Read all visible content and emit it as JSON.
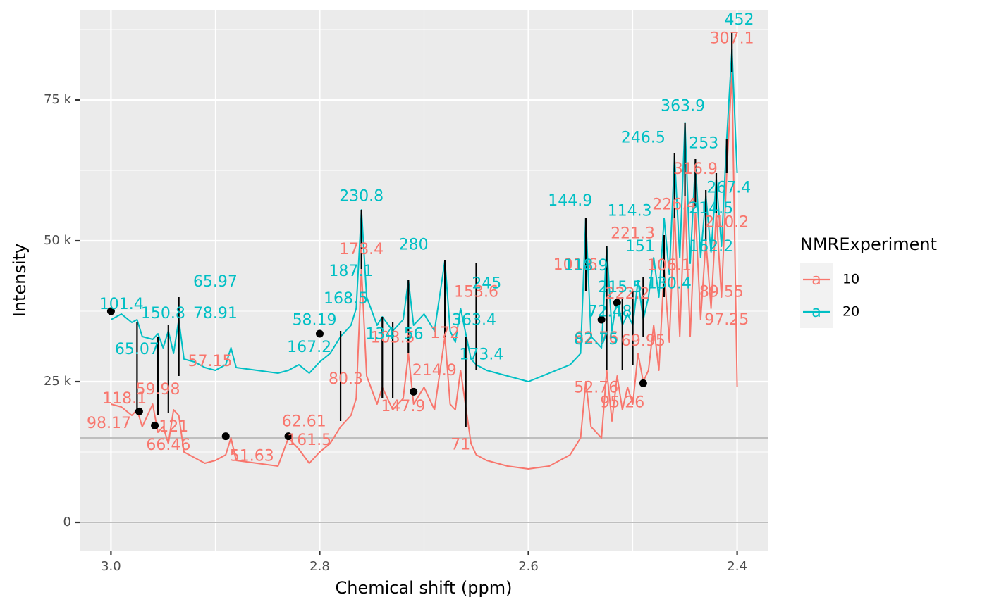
{
  "chart_data": {
    "type": "line",
    "title": "",
    "xlabel": "Chemical shift (ppm)",
    "ylabel": "Intensity",
    "xlim": [
      3.03,
      2.37
    ],
    "x_reversed": true,
    "ylim": [
      -5000,
      91000
    ],
    "x_ticks": [
      3.0,
      2.8,
      2.6,
      2.4
    ],
    "x_tick_labels": [
      "3.0",
      "2.8",
      "2.6",
      "2.4"
    ],
    "y_ticks": [
      0,
      25000,
      50000,
      75000
    ],
    "y_tick_labels": [
      "0",
      "25 k",
      "50 k",
      "75 k"
    ],
    "grid": true,
    "legend_position": "right",
    "legend_title": "NMRExperiment",
    "hlines": [
      0,
      15000
    ],
    "series": [
      {
        "name": "10",
        "color": "#F8766D",
        "points": [
          [
            3.0,
            21000
          ],
          [
            2.99,
            20500
          ],
          [
            2.98,
            19000
          ],
          [
            2.975,
            20000
          ],
          [
            2.97,
            17000
          ],
          [
            2.96,
            21000
          ],
          [
            2.955,
            16000
          ],
          [
            2.95,
            17000
          ],
          [
            2.945,
            14000
          ],
          [
            2.94,
            20000
          ],
          [
            2.935,
            19000
          ],
          [
            2.93,
            12500
          ],
          [
            2.92,
            11500
          ],
          [
            2.91,
            10500
          ],
          [
            2.9,
            11000
          ],
          [
            2.89,
            12000
          ],
          [
            2.885,
            15000
          ],
          [
            2.88,
            11000
          ],
          [
            2.86,
            10500
          ],
          [
            2.84,
            10000
          ],
          [
            2.83,
            15000
          ],
          [
            2.82,
            13000
          ],
          [
            2.81,
            10500
          ],
          [
            2.8,
            12500
          ],
          [
            2.79,
            14000
          ],
          [
            2.78,
            17000
          ],
          [
            2.77,
            19000
          ],
          [
            2.765,
            22000
          ],
          [
            2.76,
            45000
          ],
          [
            2.755,
            26000
          ],
          [
            2.745,
            21000
          ],
          [
            2.74,
            24000
          ],
          [
            2.73,
            20000
          ],
          [
            2.72,
            22000
          ],
          [
            2.715,
            30000
          ],
          [
            2.71,
            21000
          ],
          [
            2.7,
            24000
          ],
          [
            2.69,
            20000
          ],
          [
            2.68,
            33000
          ],
          [
            2.675,
            21000
          ],
          [
            2.67,
            20000
          ],
          [
            2.665,
            27000
          ],
          [
            2.655,
            14000
          ],
          [
            2.65,
            12000
          ],
          [
            2.64,
            11000
          ],
          [
            2.62,
            10000
          ],
          [
            2.6,
            9500
          ],
          [
            2.58,
            10000
          ],
          [
            2.56,
            12000
          ],
          [
            2.55,
            15000
          ],
          [
            2.545,
            25000
          ],
          [
            2.54,
            17000
          ],
          [
            2.53,
            15000
          ],
          [
            2.525,
            27000
          ],
          [
            2.52,
            18000
          ],
          [
            2.515,
            26000
          ],
          [
            2.51,
            20000
          ],
          [
            2.505,
            24000
          ],
          [
            2.5,
            21000
          ],
          [
            2.495,
            30000
          ],
          [
            2.49,
            25000
          ],
          [
            2.485,
            27000
          ],
          [
            2.48,
            35000
          ],
          [
            2.475,
            27000
          ],
          [
            2.47,
            45000
          ],
          [
            2.465,
            32000
          ],
          [
            2.46,
            55000
          ],
          [
            2.455,
            33000
          ],
          [
            2.45,
            58000
          ],
          [
            2.445,
            33000
          ],
          [
            2.44,
            55000
          ],
          [
            2.435,
            36000
          ],
          [
            2.43,
            50000
          ],
          [
            2.425,
            38000
          ],
          [
            2.42,
            55000
          ],
          [
            2.415,
            40000
          ],
          [
            2.41,
            62000
          ],
          [
            2.405,
            80000
          ],
          [
            2.4,
            24000
          ]
        ]
      },
      {
        "name": "20",
        "color": "#00BFC4",
        "points": [
          [
            3.0,
            36000
          ],
          [
            2.99,
            37000
          ],
          [
            2.98,
            35500
          ],
          [
            2.975,
            36000
          ],
          [
            2.97,
            33000
          ],
          [
            2.96,
            32500
          ],
          [
            2.955,
            33500
          ],
          [
            2.95,
            31000
          ],
          [
            2.945,
            34000
          ],
          [
            2.94,
            30000
          ],
          [
            2.935,
            36000
          ],
          [
            2.93,
            29000
          ],
          [
            2.92,
            28500
          ],
          [
            2.91,
            27500
          ],
          [
            2.9,
            27000
          ],
          [
            2.89,
            28000
          ],
          [
            2.885,
            31000
          ],
          [
            2.88,
            27500
          ],
          [
            2.86,
            27000
          ],
          [
            2.84,
            26500
          ],
          [
            2.83,
            27000
          ],
          [
            2.82,
            28000
          ],
          [
            2.81,
            26500
          ],
          [
            2.8,
            28500
          ],
          [
            2.79,
            30000
          ],
          [
            2.78,
            33000
          ],
          [
            2.77,
            35000
          ],
          [
            2.765,
            38000
          ],
          [
            2.76,
            55500
          ],
          [
            2.755,
            40000
          ],
          [
            2.745,
            35000
          ],
          [
            2.74,
            36500
          ],
          [
            2.73,
            34000
          ],
          [
            2.72,
            36000
          ],
          [
            2.715,
            43000
          ],
          [
            2.71,
            35000
          ],
          [
            2.7,
            37000
          ],
          [
            2.69,
            34000
          ],
          [
            2.68,
            46500
          ],
          [
            2.675,
            34000
          ],
          [
            2.67,
            32000
          ],
          [
            2.665,
            38000
          ],
          [
            2.655,
            29000
          ],
          [
            2.65,
            28000
          ],
          [
            2.64,
            27000
          ],
          [
            2.62,
            26000
          ],
          [
            2.6,
            25000
          ],
          [
            2.58,
            26500
          ],
          [
            2.56,
            28000
          ],
          [
            2.55,
            30000
          ],
          [
            2.545,
            54000
          ],
          [
            2.54,
            33000
          ],
          [
            2.53,
            31000
          ],
          [
            2.525,
            49000
          ],
          [
            2.52,
            34000
          ],
          [
            2.515,
            40000
          ],
          [
            2.51,
            35000
          ],
          [
            2.505,
            37000
          ],
          [
            2.5,
            35000
          ],
          [
            2.495,
            43000
          ],
          [
            2.49,
            36000
          ],
          [
            2.485,
            40000
          ],
          [
            2.48,
            47000
          ],
          [
            2.475,
            40000
          ],
          [
            2.47,
            54000
          ],
          [
            2.465,
            44000
          ],
          [
            2.46,
            65000
          ],
          [
            2.455,
            47000
          ],
          [
            2.45,
            71000
          ],
          [
            2.445,
            46000
          ],
          [
            2.44,
            64000
          ],
          [
            2.435,
            47000
          ],
          [
            2.43,
            58000
          ],
          [
            2.425,
            48000
          ],
          [
            2.42,
            61000
          ],
          [
            2.415,
            49000
          ],
          [
            2.41,
            68000
          ],
          [
            2.405,
            84000
          ],
          [
            2.4,
            62000
          ]
        ]
      }
    ],
    "peak_lines": [
      [
        2.975,
        20000,
        35500
      ],
      [
        2.955,
        19000,
        33000
      ],
      [
        2.945,
        19500,
        35000
      ],
      [
        2.935,
        26000,
        40000
      ],
      [
        2.78,
        18000,
        34000
      ],
      [
        2.76,
        45000,
        55500
      ],
      [
        2.74,
        22000,
        36500
      ],
      [
        2.73,
        22000,
        35500
      ],
      [
        2.715,
        30000,
        43000
      ],
      [
        2.68,
        33000,
        46500
      ],
      [
        2.66,
        17000,
        33000
      ],
      [
        2.65,
        27000,
        46000
      ],
      [
        2.545,
        41000,
        54000
      ],
      [
        2.525,
        27000,
        49000
      ],
      [
        2.51,
        27000,
        40000
      ],
      [
        2.5,
        28000,
        41000
      ],
      [
        2.49,
        33000,
        43500
      ],
      [
        2.47,
        40000,
        51000
      ],
      [
        2.46,
        54000,
        65500
      ],
      [
        2.45,
        58000,
        71000
      ],
      [
        2.44,
        56000,
        64500
      ],
      [
        2.43,
        50000,
        59000
      ],
      [
        2.42,
        55000,
        62000
      ],
      [
        2.41,
        62000,
        68000
      ],
      [
        2.405,
        80000,
        87000
      ]
    ],
    "points": [
      [
        3.0,
        37500
      ],
      [
        2.973,
        19700
      ],
      [
        2.958,
        17200
      ],
      [
        2.89,
        15300
      ],
      [
        2.83,
        15300
      ],
      [
        2.8,
        33500
      ],
      [
        2.71,
        23200
      ],
      [
        2.53,
        36000
      ],
      [
        2.515,
        39000
      ],
      [
        2.49,
        24700
      ]
    ],
    "annotations": {
      "10": [
        {
          "text": "307.1",
          "x": 2.405,
          "y": 85800
        },
        {
          "text": "316.9",
          "x": 2.44,
          "y": 62600
        },
        {
          "text": "226.4",
          "x": 2.46,
          "y": 56300
        },
        {
          "text": "221.3",
          "x": 2.5,
          "y": 51200
        },
        {
          "text": "210.2",
          "x": 2.41,
          "y": 53200
        },
        {
          "text": "178.4",
          "x": 2.76,
          "y": 48400
        },
        {
          "text": "101.6",
          "x": 2.555,
          "y": 45600
        },
        {
          "text": "106.1",
          "x": 2.465,
          "y": 45500
        },
        {
          "text": "153.6",
          "x": 2.65,
          "y": 40800
        },
        {
          "text": "89.55",
          "x": 2.415,
          "y": 40800
        },
        {
          "text": "222.2",
          "x": 2.505,
          "y": 40500
        },
        {
          "text": "97.25",
          "x": 2.41,
          "y": 35900
        },
        {
          "text": "103.5",
          "x": 2.73,
          "y": 32700
        },
        {
          "text": "172",
          "x": 2.68,
          "y": 33500
        },
        {
          "text": "62.76",
          "x": 2.535,
          "y": 32600
        },
        {
          "text": "69.95",
          "x": 2.49,
          "y": 32100
        },
        {
          "text": "57.15",
          "x": 2.905,
          "y": 28500
        },
        {
          "text": "214.9",
          "x": 2.69,
          "y": 26900
        },
        {
          "text": "80.3",
          "x": 2.775,
          "y": 25400
        },
        {
          "text": "59.98",
          "x": 2.955,
          "y": 23500
        },
        {
          "text": "52.76",
          "x": 2.535,
          "y": 23800
        },
        {
          "text": "118.1",
          "x": 2.987,
          "y": 21900
        },
        {
          "text": "147.9",
          "x": 2.72,
          "y": 20500
        },
        {
          "text": "95.26",
          "x": 2.51,
          "y": 21200
        },
        {
          "text": "98.17",
          "x": 3.002,
          "y": 17500
        },
        {
          "text": "121",
          "x": 2.94,
          "y": 16900
        },
        {
          "text": "62.61",
          "x": 2.815,
          "y": 17800
        },
        {
          "text": "66.46",
          "x": 2.945,
          "y": 13600
        },
        {
          "text": "161.5",
          "x": 2.81,
          "y": 14500
        },
        {
          "text": "71",
          "x": 2.665,
          "y": 13700
        },
        {
          "text": "51.63",
          "x": 2.865,
          "y": 11700
        }
      ],
      "20": [
        {
          "text": "452",
          "x": 2.398,
          "y": 89100
        },
        {
          "text": "363.9",
          "x": 2.452,
          "y": 73800
        },
        {
          "text": "246.5",
          "x": 2.49,
          "y": 68200
        },
        {
          "text": "253",
          "x": 2.432,
          "y": 67200
        },
        {
          "text": "267.4",
          "x": 2.408,
          "y": 59300
        },
        {
          "text": "214.5",
          "x": 2.425,
          "y": 55600
        },
        {
          "text": "114.3",
          "x": 2.503,
          "y": 55200
        },
        {
          "text": "230.8",
          "x": 2.76,
          "y": 57800
        },
        {
          "text": "144.9",
          "x": 2.56,
          "y": 57000
        },
        {
          "text": "280",
          "x": 2.71,
          "y": 49200
        },
        {
          "text": "151",
          "x": 2.493,
          "y": 48900
        },
        {
          "text": "162.2",
          "x": 2.425,
          "y": 48900
        },
        {
          "text": "118.9",
          "x": 2.545,
          "y": 45500
        },
        {
          "text": "187.1",
          "x": 2.77,
          "y": 44500
        },
        {
          "text": "245",
          "x": 2.64,
          "y": 42300
        },
        {
          "text": "65.97",
          "x": 2.9,
          "y": 42600
        },
        {
          "text": "130.4",
          "x": 2.465,
          "y": 42300
        },
        {
          "text": "215.5",
          "x": 2.512,
          "y": 41600
        },
        {
          "text": "168.5",
          "x": 2.775,
          "y": 39600
        },
        {
          "text": "101.4",
          "x": 2.99,
          "y": 38600
        },
        {
          "text": "72.48",
          "x": 2.522,
          "y": 37300
        },
        {
          "text": "150.8",
          "x": 2.95,
          "y": 37000
        },
        {
          "text": "78.91",
          "x": 2.9,
          "y": 37000
        },
        {
          "text": "363.4",
          "x": 2.652,
          "y": 35800
        },
        {
          "text": "58.19",
          "x": 2.805,
          "y": 35800
        },
        {
          "text": "134",
          "x": 2.742,
          "y": 33300
        },
        {
          "text": "56",
          "x": 2.71,
          "y": 33300
        },
        {
          "text": "82.75",
          "x": 2.535,
          "y": 32400
        },
        {
          "text": "167.2",
          "x": 2.81,
          "y": 31000
        },
        {
          "text": "65.07",
          "x": 2.975,
          "y": 30600
        },
        {
          "text": "173.4",
          "x": 2.645,
          "y": 29700
        }
      ]
    }
  }
}
